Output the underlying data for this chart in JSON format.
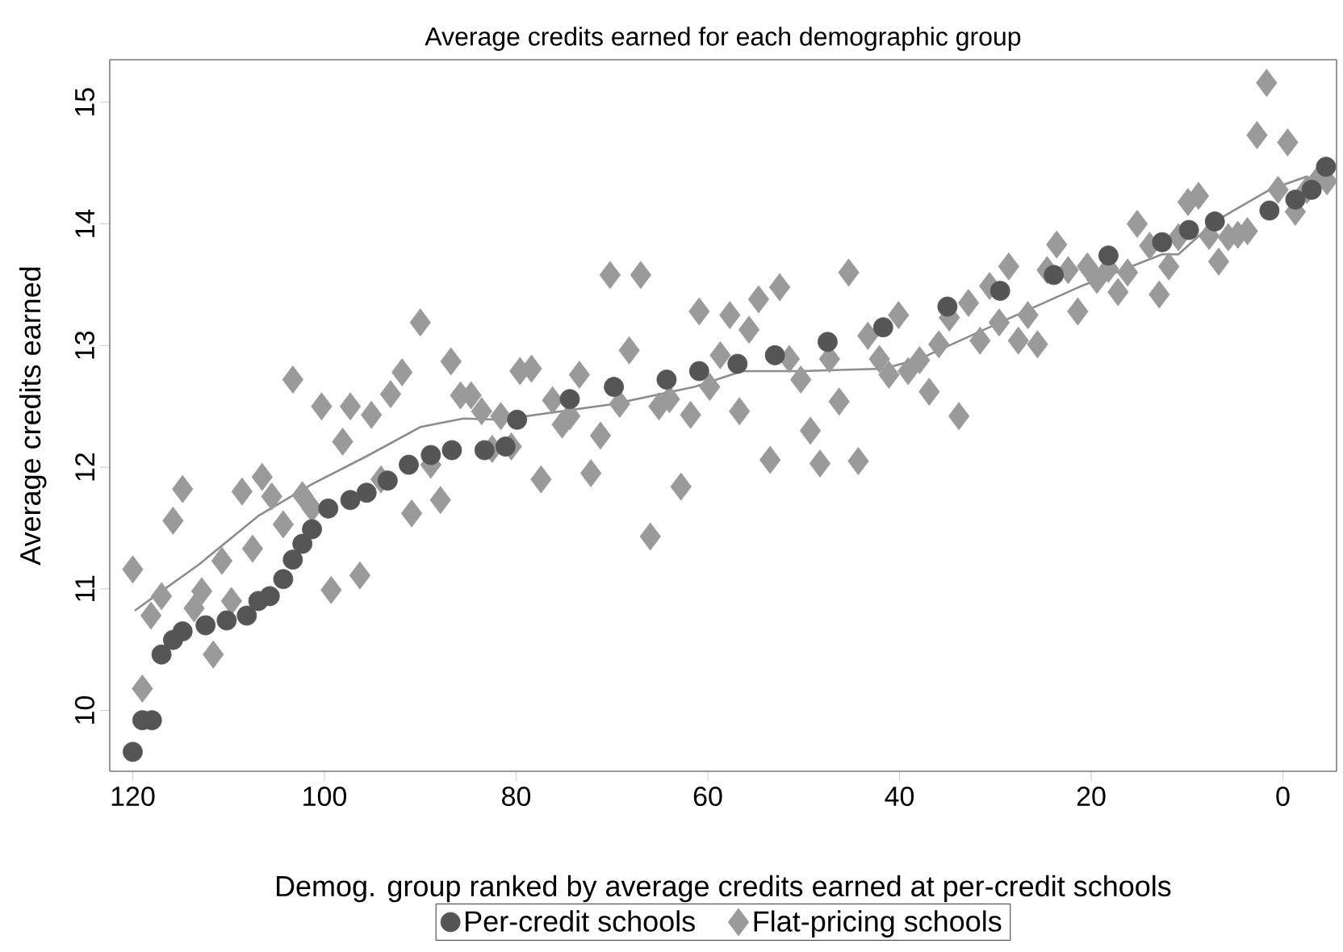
{
  "chart_data": {
    "type": "scatter",
    "title": "Average credits earned for each demographic group",
    "xlabel": "Demog. group ranked by average credits earned at per-credit schools",
    "ylabel": "Average credits earned",
    "xlim": [
      122.4,
      -5.6
    ],
    "ylim": [
      9.5,
      15.35
    ],
    "xticks": [
      120,
      100,
      80,
      60,
      40,
      20,
      0
    ],
    "yticks": [
      10,
      11,
      12,
      13,
      14,
      15
    ],
    "legend": "bottom",
    "grid": false,
    "series": [
      {
        "name": "Per-credit schools",
        "type": "scatter",
        "marker": "circle",
        "color": "#555555",
        "x": [
          120,
          119,
          118,
          117,
          115.8,
          114.8,
          112.4,
          110.2,
          108.1,
          106.9,
          105.7,
          104.3,
          103.3,
          102.3,
          101.3,
          99.6,
          97.3,
          95.6,
          93.4,
          91.2,
          88.9,
          86.7,
          83.3,
          81.1,
          79.9,
          74.4,
          69.8,
          64.3,
          60.9,
          56.9,
          53.0,
          47.5,
          41.7,
          35.0,
          29.5,
          23.9,
          18.2,
          12.6,
          9.8,
          7.1,
          1.4,
          -1.3,
          -3.0,
          -4.5
        ],
        "values": [
          9.66,
          9.92,
          9.92,
          10.46,
          10.58,
          10.65,
          10.7,
          10.74,
          10.78,
          10.9,
          10.94,
          11.08,
          11.24,
          11.37,
          11.49,
          11.66,
          11.73,
          11.79,
          11.89,
          12.02,
          12.1,
          12.14,
          12.14,
          12.17,
          12.39,
          12.56,
          12.66,
          12.72,
          12.79,
          12.85,
          12.92,
          13.03,
          13.15,
          13.32,
          13.45,
          13.58,
          13.74,
          13.85,
          13.95,
          14.02,
          14.11,
          14.2,
          14.28,
          14.47
        ]
      },
      {
        "name": "Flat-pricing schools",
        "type": "scatter",
        "marker": "diamond",
        "color": "#9a9a9a",
        "x": [
          120,
          119,
          118.1,
          117,
          115.8,
          114.8,
          113.6,
          112.8,
          111.6,
          110.7,
          109.7,
          108.6,
          107.5,
          106.5,
          105.5,
          104.3,
          103.3,
          102.3,
          101.3,
          100.3,
          99.3,
          98.1,
          97.3,
          96.3,
          95.1,
          94.1,
          93.1,
          91.9,
          90.9,
          90.0,
          88.9,
          87.9,
          86.8,
          85.8,
          84.7,
          83.6,
          82.5,
          81.6,
          80.5,
          79.6,
          78.4,
          77.4,
          76.2,
          75.2,
          74.4,
          73.4,
          72.2,
          71.2,
          70.2,
          69.2,
          68.2,
          67.0,
          66.0,
          65.1,
          64.0,
          62.8,
          61.8,
          60.9,
          59.8,
          58.7,
          57.7,
          56.7,
          55.7,
          54.7,
          53.5,
          52.5,
          51.5,
          50.3,
          49.3,
          48.3,
          47.3,
          46.3,
          45.3,
          44.3,
          43.3,
          42.1,
          41.1,
          40.1,
          39.1,
          37.9,
          36.9,
          35.9,
          34.8,
          33.8,
          32.8,
          31.6,
          30.6,
          29.6,
          28.6,
          27.6,
          26.6,
          25.6,
          24.6,
          23.6,
          22.4,
          21.4,
          20.4,
          19.4,
          18.2,
          17.2,
          16.2,
          15.2,
          13.9,
          12.9,
          11.9,
          10.9,
          9.9,
          8.8,
          7.7,
          6.7,
          5.7,
          4.7,
          3.7,
          2.7,
          1.7,
          0.5,
          -0.5,
          -1.3,
          -2.5,
          -3.5,
          -4.6
        ],
        "values": [
          11.16,
          10.18,
          10.78,
          10.94,
          11.56,
          11.82,
          10.84,
          10.98,
          10.46,
          11.23,
          10.9,
          11.8,
          11.33,
          11.92,
          11.76,
          11.53,
          12.72,
          11.77,
          11.66,
          12.5,
          10.99,
          12.21,
          12.5,
          11.11,
          12.43,
          11.9,
          12.6,
          12.78,
          11.62,
          13.19,
          12.02,
          11.73,
          12.87,
          12.59,
          12.59,
          12.46,
          12.15,
          12.42,
          12.17,
          12.79,
          12.81,
          11.9,
          12.55,
          12.35,
          12.42,
          12.76,
          11.95,
          12.26,
          13.58,
          12.52,
          12.96,
          13.58,
          11.43,
          12.5,
          12.56,
          11.84,
          12.43,
          13.28,
          12.66,
          12.92,
          13.25,
          12.46,
          13.13,
          13.38,
          12.06,
          13.48,
          12.89,
          12.72,
          12.3,
          12.03,
          12.89,
          12.54,
          13.6,
          12.05,
          13.08,
          12.89,
          12.76,
          13.25,
          12.79,
          12.88,
          12.62,
          13.01,
          13.23,
          12.42,
          13.35,
          13.04,
          13.49,
          13.19,
          13.65,
          13.04,
          13.25,
          13.01,
          13.62,
          13.83,
          13.62,
          13.28,
          13.65,
          13.54,
          13.63,
          13.44,
          13.6,
          14.0,
          13.82,
          13.42,
          13.65,
          13.89,
          14.18,
          14.23,
          13.9,
          13.69,
          13.89,
          13.91,
          13.94,
          14.73,
          15.16,
          14.28,
          14.67,
          14.1,
          14.28,
          14.35,
          14.35
        ]
      },
      {
        "type": "line",
        "marker": "none",
        "color": "#8c8c8c",
        "x": [
          119.8,
          117,
          113.1,
          106.9,
          101.3,
          95.6,
          90.0,
          85.5,
          81.6,
          69.8,
          61.4,
          56.4,
          50.2,
          41.7,
          37.9,
          29.5,
          21.0,
          12.6,
          10.9,
          7.1,
          1.4,
          -2.5,
          -4.5
        ],
        "values": [
          10.82,
          10.98,
          11.2,
          11.6,
          11.86,
          12.09,
          12.33,
          12.4,
          12.39,
          12.52,
          12.66,
          12.79,
          12.79,
          12.81,
          12.89,
          13.19,
          13.49,
          13.75,
          13.75,
          14.02,
          14.28,
          14.39,
          14.28
        ]
      }
    ]
  }
}
